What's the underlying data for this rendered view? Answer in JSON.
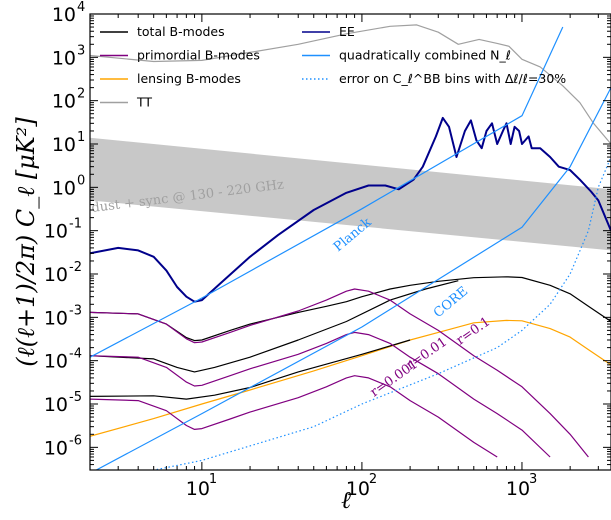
{
  "chart_data": {
    "type": "line",
    "xscale": "log",
    "yscale": "log",
    "xlim": [
      2,
      3600
    ],
    "ylim": [
      3e-07,
      10000
    ],
    "xlabel": "ℓ",
    "ylabel": "(ℓ(ℓ+1)/2π) C_ℓ [μK²]",
    "x_ticks": [
      {
        "value": 10,
        "mant": "10",
        "exp": "1"
      },
      {
        "value": 100,
        "mant": "10",
        "exp": "2"
      },
      {
        "value": 1000,
        "mant": "10",
        "exp": "3"
      }
    ],
    "y_ticks": [
      {
        "value": 1e-06,
        "mant": "10",
        "exp": "-6"
      },
      {
        "value": 1e-05,
        "mant": "10",
        "exp": "-5"
      },
      {
        "value": 0.0001,
        "mant": "10",
        "exp": "-4"
      },
      {
        "value": 0.001,
        "mant": "10",
        "exp": "-3"
      },
      {
        "value": 0.01,
        "mant": "10",
        "exp": "-2"
      },
      {
        "value": 0.1,
        "mant": "10",
        "exp": "-1"
      },
      {
        "value": 1,
        "mant": "10",
        "exp": "0"
      },
      {
        "value": 10,
        "mant": "10",
        "exp": "1"
      },
      {
        "value": 100,
        "mant": "10",
        "exp": "2"
      },
      {
        "value": 1000,
        "mant": "10",
        "exp": "3"
      },
      {
        "value": 10000,
        "mant": "10",
        "exp": "4"
      }
    ],
    "legend": [
      {
        "label": "total B-modes",
        "color": "#000000",
        "style": "solid",
        "column": "left"
      },
      {
        "label": "primordial B-modes",
        "color": "#800080",
        "style": "solid",
        "column": "left"
      },
      {
        "label": "lensing B-modes",
        "color": "#ffa500",
        "style": "solid",
        "column": "left"
      },
      {
        "label": "TT",
        "color": "#a0a0a0",
        "style": "solid",
        "column": "left"
      },
      {
        "label": "EE",
        "color": "#00008b",
        "style": "solid",
        "column": "right"
      },
      {
        "label": "quadratically combined N_ℓ",
        "color": "#1e90ff",
        "style": "solid",
        "column": "right"
      },
      {
        "label": "error on C_ℓ^BB bins with Δℓ/ℓ=30%",
        "color": "#1e90ff",
        "style": "dotted",
        "column": "right"
      }
    ],
    "foreground_band": {
      "label": "dust + sync @ 130 - 220 GHz",
      "color": "#c8c8c8",
      "upper": [
        [
          2,
          14
        ],
        [
          3600,
          0.9
        ]
      ],
      "lower": [
        [
          2,
          0.5
        ],
        [
          3600,
          0.035
        ]
      ]
    },
    "annotations": [
      {
        "text": "Planck",
        "color": "#1e90ff"
      },
      {
        "text": "CORE",
        "color": "#1e90ff"
      },
      {
        "text": "r=0.1",
        "color": "#800080"
      },
      {
        "text": "r=0.01",
        "color": "#800080"
      },
      {
        "text": "r=0.001",
        "color": "#800080"
      }
    ],
    "series": [
      {
        "name": "TT",
        "color": "#a0a0a0",
        "style": "solid",
        "points": [
          [
            2,
            1100
          ],
          [
            5,
            800
          ],
          [
            10,
            850
          ],
          [
            20,
            1300
          ],
          [
            40,
            2000
          ],
          [
            80,
            3500
          ],
          [
            150,
            5200
          ],
          [
            220,
            5600
          ],
          [
            300,
            3800
          ],
          [
            400,
            2000
          ],
          [
            540,
            2600
          ],
          [
            700,
            2100
          ],
          [
            830,
            1800
          ],
          [
            1000,
            900
          ],
          [
            1300,
            600
          ],
          [
            1800,
            220
          ],
          [
            2300,
            90
          ],
          [
            2800,
            30
          ],
          [
            3600,
            10
          ]
        ]
      },
      {
        "name": "EE",
        "color": "#00008b",
        "style": "solid",
        "points": [
          [
            2,
            0.03
          ],
          [
            3,
            0.04
          ],
          [
            4,
            0.035
          ],
          [
            5,
            0.025
          ],
          [
            6,
            0.012
          ],
          [
            7,
            0.005
          ],
          [
            8,
            0.003
          ],
          [
            9,
            0.0023
          ],
          [
            10,
            0.0025
          ],
          [
            13,
            0.006
          ],
          [
            20,
            0.025
          ],
          [
            30,
            0.08
          ],
          [
            50,
            0.3
          ],
          [
            80,
            0.75
          ],
          [
            110,
            1.1
          ],
          [
            140,
            1.1
          ],
          [
            170,
            0.9
          ],
          [
            210,
            1.5
          ],
          [
            240,
            3
          ],
          [
            290,
            15
          ],
          [
            320,
            40
          ],
          [
            350,
            25
          ],
          [
            390,
            5
          ],
          [
            440,
            20
          ],
          [
            480,
            35
          ],
          [
            520,
            12
          ],
          [
            560,
            8
          ],
          [
            600,
            20
          ],
          [
            650,
            30
          ],
          [
            700,
            10
          ],
          [
            760,
            20
          ],
          [
            800,
            30
          ],
          [
            850,
            10
          ],
          [
            900,
            25
          ],
          [
            960,
            20
          ],
          [
            1000,
            10
          ],
          [
            1100,
            15
          ],
          [
            1150,
            8
          ],
          [
            1300,
            8
          ],
          [
            1500,
            5
          ],
          [
            1700,
            3
          ],
          [
            2000,
            2.5
          ],
          [
            2300,
            1.5
          ],
          [
            2700,
            0.8
          ],
          [
            3000,
            0.5
          ],
          [
            3600,
            0.1
          ]
        ]
      },
      {
        "name": "lensing B-modes",
        "color": "#ffa500",
        "style": "solid",
        "points": [
          [
            2,
            1.8e-06
          ],
          [
            5,
            4.6e-06
          ],
          [
            10,
            1e-05
          ],
          [
            20,
            2.1e-05
          ],
          [
            50,
            5.8e-05
          ],
          [
            100,
            0.00013
          ],
          [
            200,
            0.0003
          ],
          [
            300,
            0.00045
          ],
          [
            500,
            0.00075
          ],
          [
            800,
            0.00085
          ],
          [
            1000,
            0.00083
          ],
          [
            1500,
            0.00055
          ],
          [
            2000,
            0.00035
          ],
          [
            2600,
            0.00018
          ],
          [
            3600,
            8e-05
          ]
        ]
      },
      {
        "name": "total B-modes (r=0.1)",
        "color": "#000000",
        "style": "solid",
        "points": [
          [
            2,
            0.0013
          ],
          [
            4,
            0.0012
          ],
          [
            6,
            0.0007
          ],
          [
            8,
            0.00034
          ],
          [
            9,
            0.00029
          ],
          [
            10,
            0.0003
          ],
          [
            15,
            0.0005
          ],
          [
            20,
            0.0007
          ],
          [
            40,
            0.0013
          ],
          [
            60,
            0.0018
          ],
          [
            80,
            0.0023
          ],
          [
            100,
            0.003
          ],
          [
            150,
            0.0045
          ],
          [
            200,
            0.0055
          ],
          [
            300,
            0.0068
          ],
          [
            500,
            0.0082
          ],
          [
            800,
            0.0086
          ],
          [
            1000,
            0.0083
          ],
          [
            1500,
            0.0055
          ],
          [
            2000,
            0.0035
          ],
          [
            2600,
            0.0018
          ],
          [
            3600,
            0.0008
          ]
        ]
      },
      {
        "name": "total B-modes (r=0.01)",
        "color": "#000000",
        "style": "solid",
        "points": [
          [
            2,
            0.00013
          ],
          [
            5,
            0.00011
          ],
          [
            7,
            7e-05
          ],
          [
            9,
            5.5e-05
          ],
          [
            12,
            7e-05
          ],
          [
            20,
            0.00012
          ],
          [
            40,
            0.0003
          ],
          [
            80,
            0.0008
          ],
          [
            150,
            0.0025
          ],
          [
            250,
            0.0045
          ],
          [
            400,
            0.007
          ]
        ]
      },
      {
        "name": "total B-modes (r=0.001)",
        "color": "#000000",
        "style": "solid",
        "points": [
          [
            2,
            1.5e-05
          ],
          [
            5,
            1.55e-05
          ],
          [
            8,
            1.3e-05
          ],
          [
            12,
            1.6e-05
          ],
          [
            20,
            2.4e-05
          ],
          [
            40,
            5.5e-05
          ],
          [
            100,
            0.00014
          ],
          [
            200,
            0.0003
          ]
        ]
      },
      {
        "name": "primordial B-modes (r=0.1)",
        "color": "#800080",
        "style": "solid",
        "points": [
          [
            2,
            0.0013
          ],
          [
            4,
            0.0012
          ],
          [
            6,
            0.0007
          ],
          [
            8,
            0.00032
          ],
          [
            9,
            0.00026
          ],
          [
            10,
            0.00027
          ],
          [
            15,
            0.00045
          ],
          [
            20,
            0.00065
          ],
          [
            40,
            0.0014
          ],
          [
            60,
            0.0025
          ],
          [
            80,
            0.004
          ],
          [
            90,
            0.0045
          ],
          [
            110,
            0.004
          ],
          [
            150,
            0.0025
          ],
          [
            200,
            0.0012
          ],
          [
            300,
            0.0005
          ],
          [
            500,
            0.00013
          ],
          [
            700,
            6e-05
          ],
          [
            1000,
            2.5e-05
          ],
          [
            1500,
            6e-06
          ],
          [
            2000,
            2e-06
          ],
          [
            2600,
            6e-07
          ]
        ]
      },
      {
        "name": "primordial B-modes (r=0.01)",
        "color": "#800080",
        "style": "solid",
        "points": [
          [
            2,
            0.00013
          ],
          [
            4,
            0.00012
          ],
          [
            6,
            7e-05
          ],
          [
            8,
            3.2e-05
          ],
          [
            9,
            2.6e-05
          ],
          [
            10,
            2.7e-05
          ],
          [
            15,
            4.5e-05
          ],
          [
            20,
            6.5e-05
          ],
          [
            40,
            0.00014
          ],
          [
            60,
            0.00025
          ],
          [
            80,
            0.0004
          ],
          [
            90,
            0.00045
          ],
          [
            110,
            0.0004
          ],
          [
            150,
            0.00025
          ],
          [
            200,
            0.00012
          ],
          [
            300,
            5e-05
          ],
          [
            500,
            1.3e-05
          ],
          [
            700,
            6e-06
          ],
          [
            1000,
            2.5e-06
          ],
          [
            1500,
            6e-07
          ]
        ]
      },
      {
        "name": "primordial B-modes (r=0.001)",
        "color": "#800080",
        "style": "solid",
        "points": [
          [
            2,
            1.3e-05
          ],
          [
            4,
            1.2e-05
          ],
          [
            6,
            7e-06
          ],
          [
            8,
            3.2e-06
          ],
          [
            9,
            2.6e-06
          ],
          [
            10,
            2.7e-06
          ],
          [
            15,
            4.5e-06
          ],
          [
            20,
            6.5e-06
          ],
          [
            40,
            1.4e-05
          ],
          [
            60,
            2.5e-05
          ],
          [
            80,
            4e-05
          ],
          [
            90,
            4.5e-05
          ],
          [
            110,
            4e-05
          ],
          [
            150,
            2.5e-05
          ],
          [
            200,
            1.2e-05
          ],
          [
            300,
            5e-06
          ],
          [
            500,
            1.3e-06
          ],
          [
            700,
            6e-07
          ]
        ]
      },
      {
        "name": "N_ℓ Planck",
        "color": "#1e90ff",
        "style": "solid",
        "points": [
          [
            2,
            0.00012
          ],
          [
            10,
            0.0028
          ],
          [
            100,
            0.32
          ],
          [
            1000,
            45
          ],
          [
            1800,
            5000
          ]
        ]
      },
      {
        "name": "N_ℓ CORE",
        "color": "#1e90ff",
        "style": "solid",
        "points": [
          [
            2,
            2.5e-07
          ],
          [
            10,
            6e-06
          ],
          [
            100,
            0.0006
          ],
          [
            1000,
            0.12
          ],
          [
            2000,
            3
          ],
          [
            3600,
            200
          ]
        ]
      },
      {
        "name": "error on C_ℓ^BB bins",
        "color": "#1e90ff",
        "style": "dotted",
        "points": [
          [
            2,
            1.5e-07
          ],
          [
            10,
            5e-07
          ],
          [
            50,
            3e-06
          ],
          [
            100,
            1e-05
          ],
          [
            300,
            5e-05
          ],
          [
            700,
            0.0002
          ],
          [
            1000,
            0.0005
          ],
          [
            1500,
            0.002
          ],
          [
            2000,
            0.01
          ],
          [
            2600,
            0.1
          ],
          [
            3000,
            1
          ],
          [
            3600,
            5
          ]
        ]
      }
    ]
  }
}
